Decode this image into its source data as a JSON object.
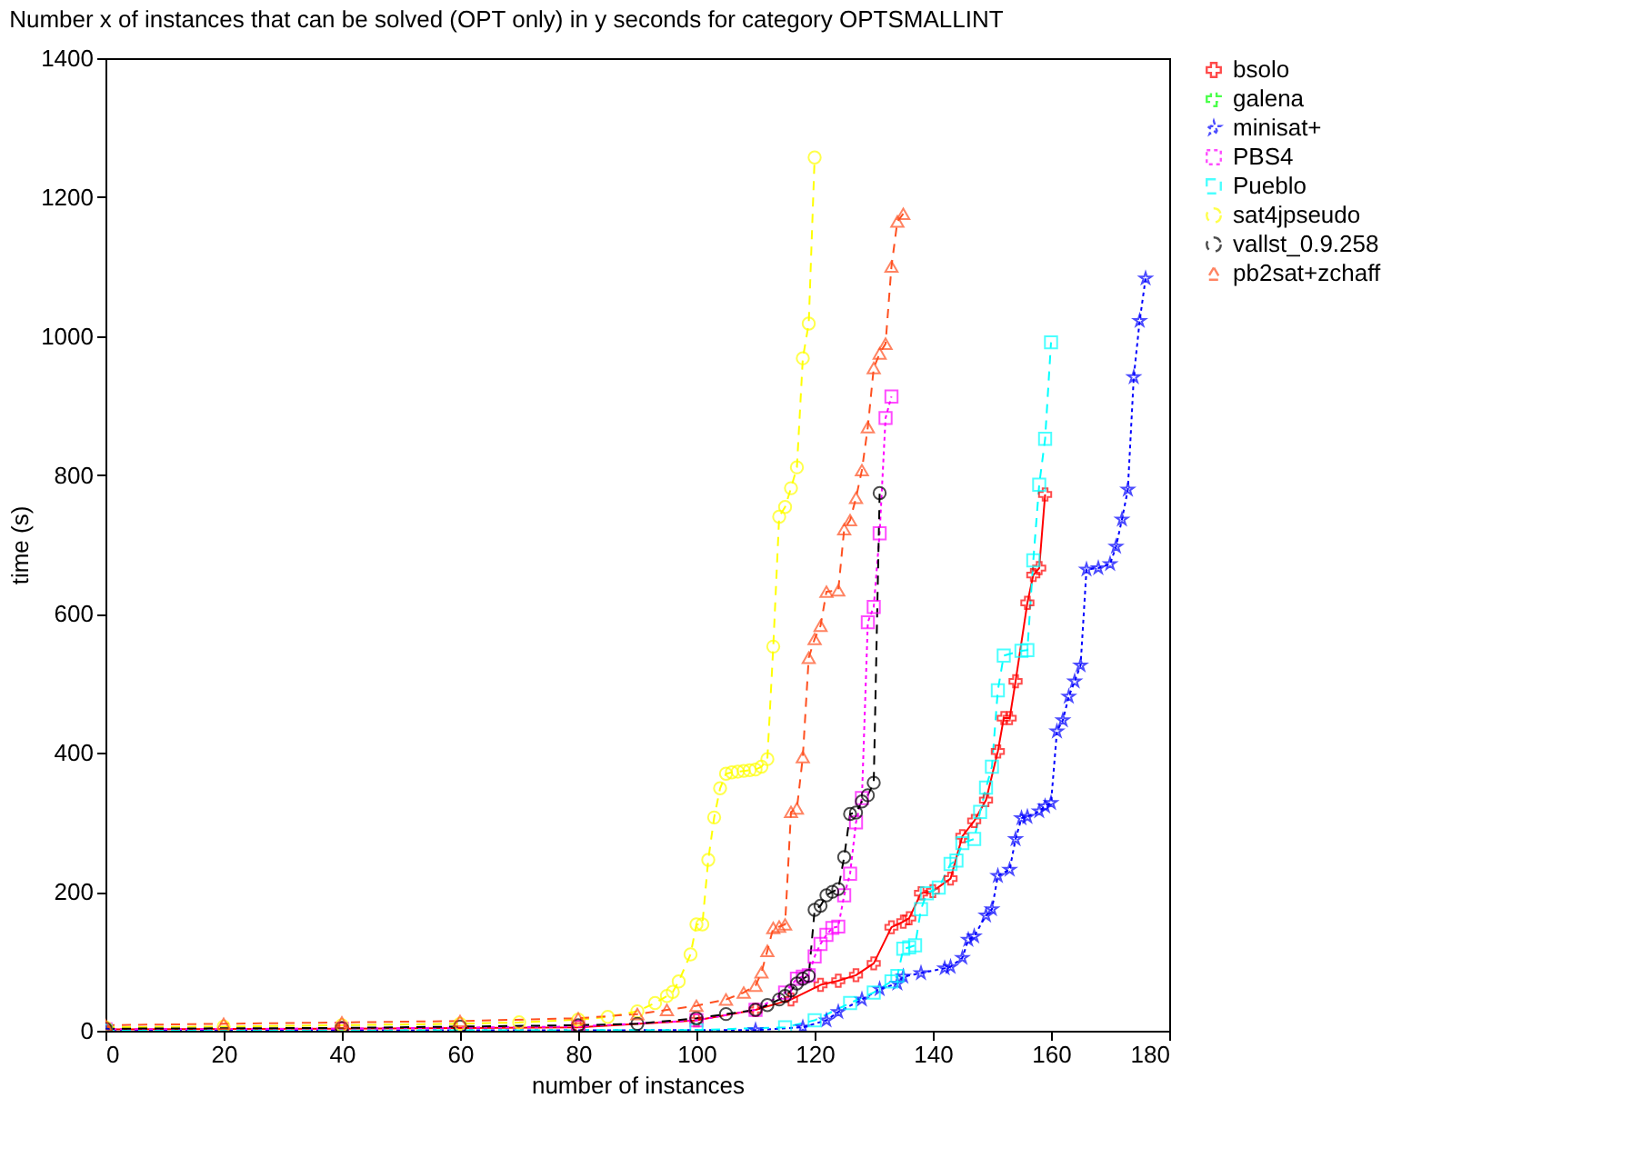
{
  "chart_data": {
    "type": "line",
    "title": "Number x of instances that can be solved (OPT only) in y seconds for category OPTSMALLINT",
    "xlabel": "number of instances",
    "ylabel": "time (s)",
    "xlim": [
      0,
      180
    ],
    "xticks": [
      0,
      20,
      40,
      60,
      80,
      100,
      120,
      140,
      160,
      180
    ],
    "ylim": [
      0,
      1400
    ],
    "yticks": [
      0,
      200,
      400,
      600,
      800,
      1000,
      1200,
      1400
    ],
    "grid": false,
    "legend": "top right",
    "series": [
      {
        "name": "bsolo",
        "color": "#ff0000",
        "marker": "cross",
        "line_style": "solid",
        "x": [
          0,
          40,
          80,
          100,
          110,
          116,
          121,
          124,
          127,
          130,
          133,
          135,
          136,
          138,
          140,
          143,
          145,
          147,
          149,
          151,
          152,
          153,
          154,
          156,
          157,
          158,
          159
        ],
        "values": [
          2,
          3,
          5,
          15,
          30,
          45,
          66,
          72,
          80,
          97,
          149,
          157,
          162,
          198,
          201,
          219,
          280,
          302,
          332,
          402,
          450,
          450,
          503,
          616,
          656,
          666,
          772
        ]
      },
      {
        "name": "galena",
        "color": "#00ff00",
        "marker": "cross",
        "line_style": "dashed"
      },
      {
        "name": "minisat+",
        "color": "#0000ff",
        "marker": "star",
        "line_style": "dotted",
        "x": [
          0,
          110,
          118,
          122,
          124,
          128,
          131,
          134,
          135,
          138,
          142,
          143,
          145,
          146,
          147,
          149,
          150,
          151,
          153,
          154,
          155,
          156,
          158,
          159,
          160,
          161,
          162,
          163,
          164,
          165,
          166,
          168,
          170,
          171,
          172,
          173,
          174,
          175,
          176
        ],
        "values": [
          0,
          1,
          5,
          15,
          27,
          45,
          60,
          68,
          78,
          83,
          90,
          92,
          105,
          131,
          136,
          166,
          175,
          223,
          232,
          276,
          306,
          308,
          316,
          323,
          328,
          431,
          447,
          481,
          503,
          526,
          664,
          666,
          672,
          697,
          736,
          779,
          941,
          1022,
          1083
        ]
      },
      {
        "name": "PBS4",
        "color": "#ff00ff",
        "marker": "square",
        "line_style": "dotted",
        "x": [
          0,
          40,
          80,
          100,
          110,
          115,
          117,
          118,
          119,
          120,
          121,
          122,
          123,
          124,
          125,
          126,
          127,
          128,
          129,
          130,
          131,
          132,
          133
        ],
        "values": [
          2,
          3,
          6,
          15,
          30,
          55,
          75,
          78,
          80,
          107,
          125,
          138,
          148,
          150,
          195,
          226,
          300,
          335,
          588,
          610,
          716,
          882,
          913
        ]
      },
      {
        "name": "Pueblo",
        "color": "#00ffff",
        "marker": "square",
        "line_style": "dashed",
        "x": [
          0,
          100,
          115,
          120,
          126,
          130,
          133,
          134,
          135,
          136,
          137,
          138,
          139,
          141,
          143,
          144,
          145,
          147,
          148,
          149,
          150,
          151,
          152,
          155,
          156,
          157,
          158,
          159,
          160
        ],
        "values": [
          0,
          1,
          5,
          15,
          40,
          55,
          71,
          79,
          118,
          120,
          123,
          175,
          198,
          206,
          240,
          245,
          270,
          276,
          315,
          350,
          380,
          490,
          540,
          547,
          548,
          677,
          786,
          852,
          991
        ]
      },
      {
        "name": "sat4jpseudo",
        "color": "#ffff00",
        "marker": "circle",
        "line_style": "dashed",
        "x": [
          0,
          20,
          40,
          60,
          70,
          80,
          85,
          90,
          93,
          95,
          96,
          97,
          99,
          100,
          101,
          102,
          103,
          104,
          105,
          106,
          107,
          108,
          109,
          110,
          111,
          112,
          113,
          114,
          115,
          116,
          117,
          118,
          119,
          120
        ],
        "values": [
          5,
          6,
          8,
          10,
          12,
          16,
          20,
          28,
          40,
          50,
          56,
          71,
          110,
          153,
          153,
          246,
          307,
          349,
          370,
          372,
          373,
          374,
          375,
          376,
          380,
          391,
          553,
          740,
          754,
          781,
          811,
          968,
          1018,
          1257
        ]
      },
      {
        "name": "vallst_0.9.258",
        "color": "#000000",
        "marker": "circle",
        "line_style": "dashed",
        "x": [
          0,
          40,
          60,
          80,
          90,
          100,
          105,
          110,
          112,
          114,
          115,
          116,
          117,
          118,
          119,
          120,
          121,
          122,
          123,
          124,
          125,
          126,
          127,
          128,
          129,
          130,
          131
        ],
        "values": [
          3,
          4,
          6,
          8,
          10,
          18,
          24,
          30,
          37,
          45,
          50,
          58,
          68,
          75,
          79,
          174,
          180,
          195,
          200,
          204,
          250,
          312,
          314,
          330,
          339,
          357,
          774
        ]
      },
      {
        "name": "pb2sat+zchaff",
        "color": "#ff5020",
        "marker": "triangle",
        "line_style": "dashed",
        "x": [
          0,
          20,
          40,
          60,
          80,
          90,
          95,
          100,
          105,
          108,
          110,
          111,
          112,
          113,
          114,
          115,
          116,
          117,
          118,
          119,
          120,
          121,
          122,
          124,
          125,
          126,
          127,
          128,
          129,
          130,
          131,
          132,
          133,
          134,
          135
        ],
        "values": [
          8,
          10,
          12,
          14,
          18,
          24,
          30,
          36,
          45,
          55,
          65,
          84,
          115,
          148,
          150,
          153,
          315,
          320,
          394,
          537,
          564,
          583,
          632,
          634,
          722,
          735,
          767,
          807,
          869,
          954,
          975,
          989,
          1100,
          1165,
          1176
        ]
      }
    ]
  }
}
